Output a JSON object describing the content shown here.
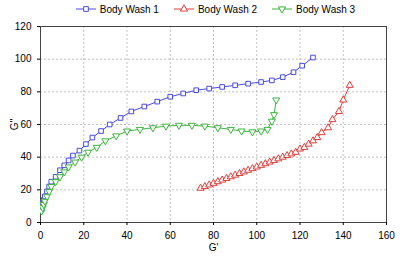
{
  "chart_data": {
    "type": "line",
    "x_label": "G'",
    "y_label": "G''",
    "xlim": [
      0,
      160
    ],
    "xticks": [
      0,
      20,
      40,
      60,
      80,
      100,
      120,
      140,
      160
    ],
    "ylim": [
      0,
      120
    ],
    "yticks": [
      0,
      20,
      40,
      60,
      80,
      100,
      120
    ],
    "grid": true,
    "legend": "top",
    "series": [
      {
        "name": "Body Wash 1",
        "color": "#4a4ae0",
        "marker": "square",
        "x": [
          0.5,
          0.7,
          1,
          1.5,
          2,
          3,
          4,
          5,
          7,
          9,
          11,
          13,
          15,
          18,
          21,
          24,
          28,
          32,
          37,
          42,
          48,
          54,
          60,
          66,
          72,
          78,
          84,
          90,
          96,
          102,
          107,
          112,
          117,
          121,
          126
        ],
        "values": [
          8,
          10,
          12,
          14,
          16,
          19,
          22,
          25,
          28,
          32,
          35,
          38,
          41,
          44,
          48,
          52,
          56,
          60,
          64,
          68,
          71,
          74,
          77,
          79,
          81,
          82,
          83,
          84,
          85,
          86,
          87,
          89,
          92,
          96,
          101
        ]
      },
      {
        "name": "Body Wash 2",
        "color": "#e03c3c",
        "marker": "triangle",
        "x": [
          74,
          76,
          78,
          80,
          82,
          84,
          86,
          88,
          90,
          92,
          94,
          96,
          98,
          100,
          102,
          104,
          106,
          108,
          110,
          112,
          114,
          116,
          118,
          120,
          122,
          124,
          126,
          128,
          130,
          133,
          135,
          138,
          140,
          143
        ],
        "values": [
          21,
          22,
          23,
          24,
          25,
          26,
          27,
          28,
          29,
          30,
          31,
          32,
          33,
          34,
          35,
          36,
          37,
          38,
          39,
          40,
          41,
          42,
          43,
          45,
          46,
          48,
          50,
          52,
          55,
          58,
          63,
          68,
          75,
          84
        ]
      },
      {
        "name": "Body Wash 3",
        "color": "#3cb43c",
        "marker": "triangle-down",
        "x": [
          0.5,
          1,
          1.5,
          2,
          3,
          4,
          5,
          7,
          9,
          11,
          13,
          16,
          19,
          22,
          26,
          30,
          35,
          40,
          46,
          52,
          58,
          64,
          70,
          76,
          82,
          88,
          93,
          98,
          102,
          105,
          107,
          108,
          109
        ],
        "values": [
          7,
          9,
          11,
          13,
          16,
          19,
          22,
          25,
          28,
          31,
          34,
          37,
          40,
          43,
          46,
          50,
          53,
          56,
          57,
          58,
          59,
          59.5,
          59.5,
          59,
          58,
          57,
          56,
          55.5,
          56,
          57,
          62,
          66,
          75
        ]
      }
    ]
  }
}
